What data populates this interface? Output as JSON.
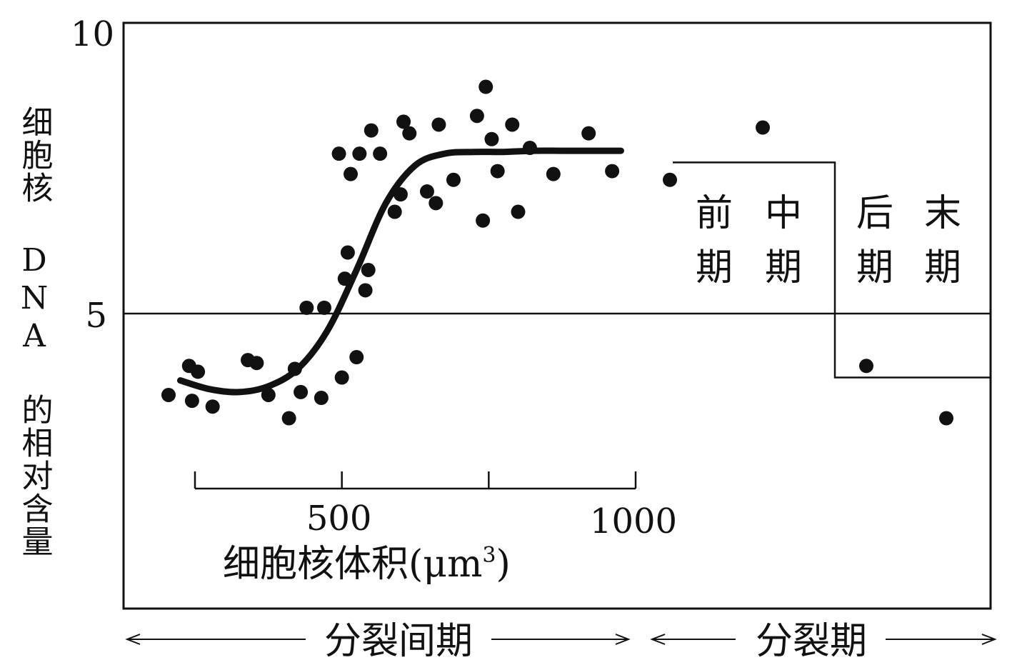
{
  "chart_data": {
    "type": "scatter",
    "ylabel": "细胞核 DNA 的相对含量",
    "y_ticks": [
      "10",
      "5"
    ],
    "ylim": [
      0,
      10
    ],
    "inset_axis": {
      "xlabel": "细胞核体积(μm",
      "xlabel_sup": "3",
      "xlabel_end": ")",
      "tick_labels": [
        "500",
        "1000"
      ],
      "range": [
        250,
        1000
      ],
      "tick_values": [
        500,
        750,
        1000
      ]
    },
    "interphase_points": [
      [
        205,
        3.6
      ],
      [
        240,
        4.1
      ],
      [
        245,
        3.5
      ],
      [
        255,
        4.0
      ],
      [
        280,
        3.4
      ],
      [
        340,
        4.2
      ],
      [
        355,
        4.15
      ],
      [
        375,
        3.6
      ],
      [
        410,
        3.2
      ],
      [
        420,
        4.05
      ],
      [
        430,
        3.65
      ],
      [
        440,
        5.1
      ],
      [
        465,
        3.55
      ],
      [
        470,
        5.1
      ],
      [
        495,
        7.75
      ],
      [
        500,
        3.9
      ],
      [
        505,
        5.6
      ],
      [
        510,
        6.05
      ],
      [
        515,
        7.4
      ],
      [
        525,
        4.25
      ],
      [
        530,
        7.75
      ],
      [
        540,
        5.4
      ],
      [
        545,
        5.75
      ],
      [
        550,
        8.15
      ],
      [
        565,
        7.75
      ],
      [
        590,
        6.75
      ],
      [
        600,
        7.05
      ],
      [
        605,
        8.3
      ],
      [
        615,
        8.1
      ],
      [
        645,
        7.1
      ],
      [
        660,
        6.9
      ],
      [
        665,
        8.25
      ],
      [
        690,
        7.3
      ],
      [
        730,
        8.4
      ],
      [
        740,
        6.6
      ],
      [
        745,
        8.9
      ],
      [
        755,
        8.0
      ],
      [
        765,
        7.45
      ],
      [
        790,
        8.25
      ],
      [
        800,
        6.75
      ],
      [
        820,
        7.85
      ],
      [
        860,
        7.4
      ],
      [
        920,
        8.1
      ],
      [
        960,
        7.45
      ]
    ],
    "fit_curve": [
      [
        225,
        3.85
      ],
      [
        275,
        3.7
      ],
      [
        325,
        3.65
      ],
      [
        375,
        3.75
      ],
      [
        425,
        4.05
      ],
      [
        475,
        4.7
      ],
      [
        525,
        5.75
      ],
      [
        575,
        6.9
      ],
      [
        625,
        7.55
      ],
      [
        675,
        7.75
      ],
      [
        725,
        7.78
      ],
      [
        775,
        7.78
      ],
      [
        825,
        7.8
      ],
      [
        875,
        7.8
      ],
      [
        925,
        7.8
      ],
      [
        975,
        7.8
      ]
    ],
    "division_points": [
      {
        "phase": "前期",
        "y": 7.3
      },
      {
        "phase": "中期",
        "y": 8.2
      },
      {
        "phase": "后期",
        "y": 4.1
      },
      {
        "phase": "末期",
        "y": 3.2
      }
    ],
    "division_step": {
      "high": 7.6,
      "low": 3.9
    },
    "phases": [
      {
        "top": "前",
        "bottom": "期"
      },
      {
        "top": "中",
        "bottom": "期"
      },
      {
        "top": "后",
        "bottom": "期"
      },
      {
        "top": "末",
        "bottom": "期"
      }
    ],
    "bottom_bands": [
      "分裂间期",
      "分裂期"
    ],
    "reference_line_y": 5,
    "grid": false
  }
}
